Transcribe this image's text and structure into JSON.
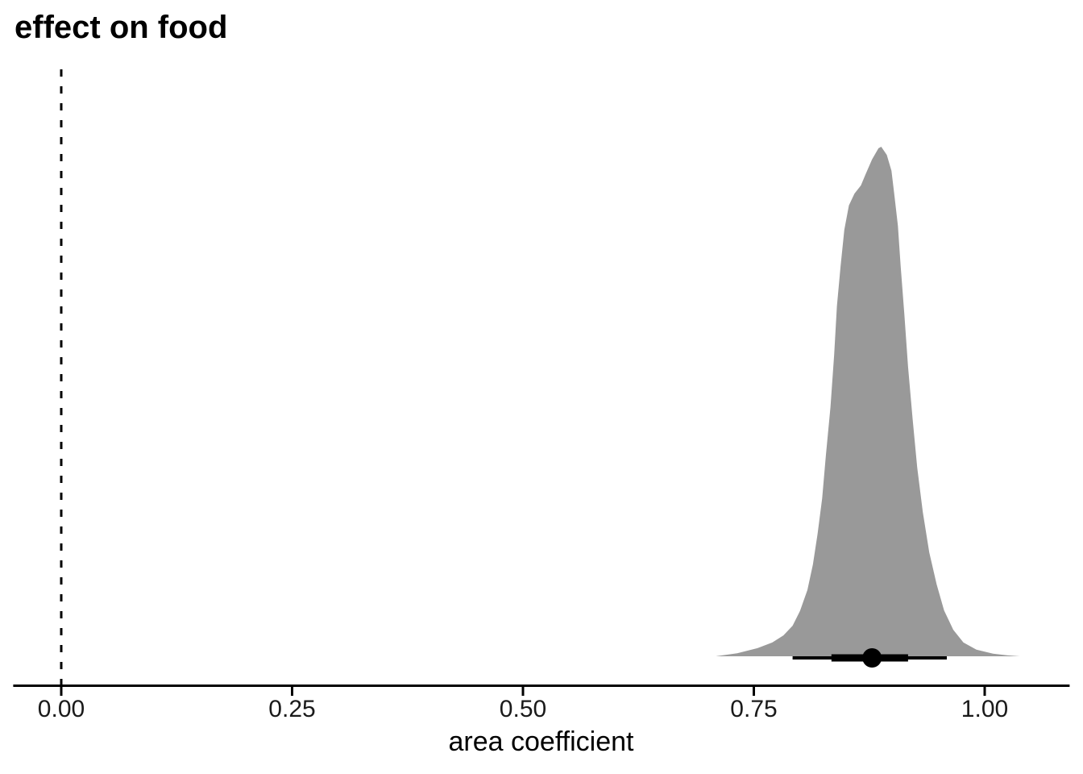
{
  "chart_data": {
    "type": "area",
    "subtype": "halfeye-posterior-density",
    "title": "effect on food",
    "xlabel": "area coefficient",
    "ylabel": "",
    "grid": false,
    "legend": false,
    "xlim": [
      -0.052,
      1.092
    ],
    "x_ticks": [
      {
        "value": 0.0,
        "label": "0.00"
      },
      {
        "value": 0.25,
        "label": "0.25"
      },
      {
        "value": 0.5,
        "label": "0.50"
      },
      {
        "value": 0.75,
        "label": "0.75"
      },
      {
        "value": 1.0,
        "label": "1.00"
      }
    ],
    "reference_line": {
      "x": 0.0,
      "style": "dashed"
    },
    "density": {
      "x": [
        0.709,
        0.732,
        0.754,
        0.77,
        0.782,
        0.792,
        0.8,
        0.808,
        0.814,
        0.819,
        0.824,
        0.828,
        0.833,
        0.837,
        0.84,
        0.844,
        0.848,
        0.853,
        0.859,
        0.866,
        0.871,
        0.878,
        0.885,
        0.888,
        0.894,
        0.899,
        0.902,
        0.906,
        0.909,
        0.913,
        0.917,
        0.922,
        0.927,
        0.933,
        0.94,
        0.948,
        0.956,
        0.966,
        0.977,
        0.991,
        1.009,
        1.024,
        1.038
      ],
      "height": [
        0.0,
        0.006,
        0.016,
        0.027,
        0.041,
        0.06,
        0.089,
        0.13,
        0.18,
        0.24,
        0.31,
        0.394,
        0.489,
        0.592,
        0.687,
        0.766,
        0.837,
        0.885,
        0.908,
        0.924,
        0.946,
        0.975,
        0.997,
        1.0,
        0.984,
        0.953,
        0.908,
        0.845,
        0.766,
        0.671,
        0.568,
        0.465,
        0.37,
        0.283,
        0.204,
        0.141,
        0.09,
        0.052,
        0.027,
        0.013,
        0.005,
        0.002,
        0.0
      ]
    },
    "point_interval": {
      "median": 0.878,
      "interval_wide": [
        0.792,
        0.959
      ],
      "interval_narrow": [
        0.834,
        0.917
      ]
    },
    "colors": {
      "density_fill": "#999999",
      "interval_stroke": "#000000",
      "point_fill": "#000000",
      "axis_stroke": "#000000",
      "tick_text": "#1a1a1a",
      "title_text": "#000000",
      "reference_line": "#000000"
    }
  }
}
